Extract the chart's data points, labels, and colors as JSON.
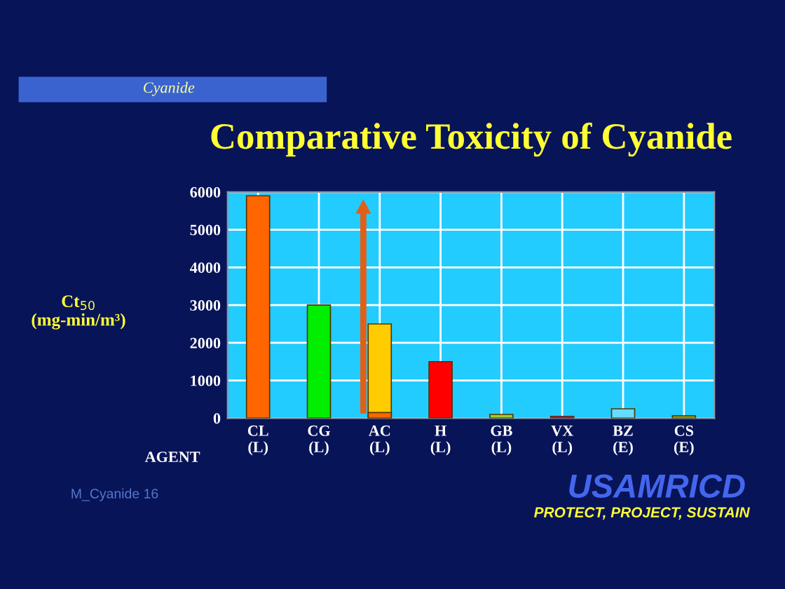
{
  "chart_data": {
    "type": "bar",
    "title": "Comparative Toxicity of Cyanide",
    "subtitle": "Cyanide",
    "ylabel": "Ct$_{50}$\n(mg-min/m³)",
    "xlabel": "AGENT",
    "categories": [
      "CL\n(L)",
      "CG\n(L)",
      "AC\n(L)",
      "H\n(L)",
      "GB\n(L)",
      "VX\n(L)",
      "BZ\n(E)",
      "CS\n(E)"
    ],
    "series": [
      {
        "colors": [
          "#ff6600",
          "#00ee00",
          "#ffcc00",
          "#ff0000",
          "#99cc33",
          "#cc00cc",
          "#66ddff",
          "#99cc00"
        ],
        "values": [
          5900,
          3000,
          2500,
          1500,
          100,
          50,
          250,
          60
        ]
      },
      {
        "color": "#ff6600",
        "values": [
          null,
          null,
          150,
          null,
          null,
          null,
          null,
          null
        ]
      }
    ],
    "ylim": [
      0,
      6000
    ],
    "yticks": [
      0,
      1000,
      2000,
      3000,
      4000,
      5000,
      6000
    ],
    "grid": true,
    "legend": false,
    "annotations": [
      "M_Cyanide 16",
      "USAMRICD",
      "PROTECT, PROJECT, SUSTAIN"
    ]
  }
}
